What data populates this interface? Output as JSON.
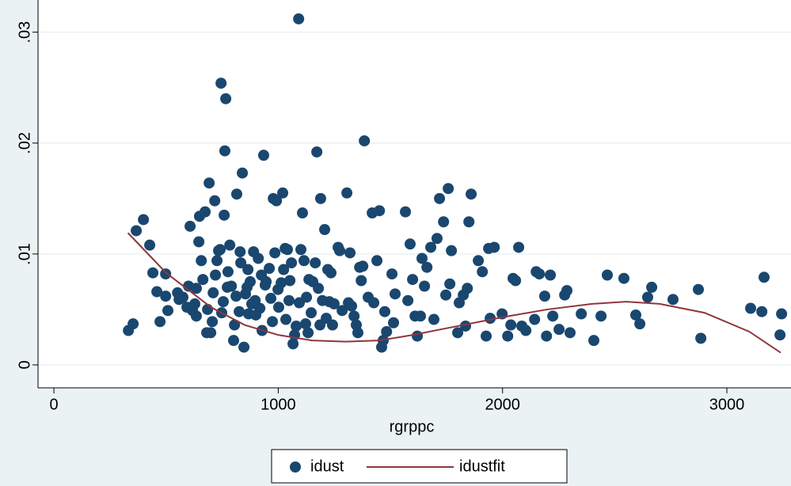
{
  "chart_data": {
    "type": "scatter",
    "x_label": "rgrppc",
    "xlim": [
      -71,
      3286
    ],
    "ylim": [
      -0.00207,
      0.0329
    ],
    "xticks": [
      0,
      1000,
      2000,
      3000
    ],
    "yticks": [
      0,
      {
        "value": 0.01,
        "label": ".01"
      },
      {
        "value": 0.02,
        "label": ".02"
      },
      {
        "value": 0.03,
        "label": ".03"
      }
    ],
    "grid": true,
    "legend": "bottom",
    "series": [
      {
        "name": "idust",
        "type": "scatter",
        "color": "#1a476f",
        "x": [
          332,
          353,
          367,
          399,
          427,
          441,
          459,
          473,
          498,
          498,
          508,
          551,
          558,
          575,
          593,
          600,
          607,
          618,
          628,
          635,
          635,
          646,
          649,
          657,
          664,
          674,
          681,
          685,
          692,
          699,
          706,
          710,
          717,
          720,
          727,
          734,
          741,
          745,
          748,
          755,
          759,
          762,
          766,
          773,
          776,
          784,
          791,
          801,
          805,
          812,
          815,
          826,
          830,
          833,
          840,
          847,
          854,
          861,
          865,
          868,
          875,
          882,
          890,
          897,
          900,
          911,
          918,
          925,
          928,
          935,
          942,
          946,
          960,
          967,
          974,
          978,
          985,
          992,
          999,
          1002,
          1013,
          1020,
          1024,
          1031,
          1034,
          1041,
          1048,
          1052,
          1059,
          1066,
          1073,
          1080,
          1091,
          1094,
          1101,
          1108,
          1115,
          1122,
          1126,
          1133,
          1137,
          1147,
          1154,
          1165,
          1172,
          1179,
          1186,
          1189,
          1197,
          1207,
          1214,
          1221,
          1228,
          1235,
          1242,
          1249,
          1267,
          1274,
          1285,
          1306,
          1313,
          1320,
          1327,
          1338,
          1348,
          1355,
          1363,
          1370,
          1377,
          1384,
          1401,
          1419,
          1426,
          1440,
          1451,
          1461,
          1468,
          1475,
          1483,
          1507,
          1514,
          1521,
          1567,
          1578,
          1588,
          1599,
          1610,
          1620,
          1634,
          1641,
          1652,
          1663,
          1680,
          1694,
          1708,
          1719,
          1737,
          1747,
          1758,
          1765,
          1772,
          1800,
          1807,
          1825,
          1835,
          1843,
          1850,
          1860,
          1892,
          1910,
          1927,
          1938,
          1945,
          1963,
          1998,
          2023,
          2037,
          2047,
          2058,
          2072,
          2086,
          2104,
          2143,
          2150,
          2164,
          2188,
          2196,
          2213,
          2224,
          2252,
          2277,
          2287,
          2301,
          2351,
          2407,
          2439,
          2467,
          2541,
          2594,
          2612,
          2647,
          2665,
          2760,
          2873,
          2884,
          3106,
          3156,
          3166,
          3237,
          3244
        ],
        "values": [
          0.0031,
          0.0037,
          0.0121,
          0.0131,
          0.0108,
          0.0083,
          0.0066,
          0.0039,
          0.0082,
          0.0062,
          0.0049,
          0.0065,
          0.0059,
          0.0061,
          0.0052,
          0.0071,
          0.0125,
          0.0049,
          0.0055,
          0.0044,
          0.0069,
          0.0111,
          0.0134,
          0.0094,
          0.0077,
          0.0138,
          0.0029,
          0.005,
          0.0164,
          0.0029,
          0.0039,
          0.0065,
          0.0148,
          0.0081,
          0.0094,
          0.0103,
          0.0104,
          0.0254,
          0.0047,
          0.0057,
          0.0135,
          0.0193,
          0.024,
          0.007,
          0.0084,
          0.0108,
          0.0071,
          0.0022,
          0.0036,
          0.0062,
          0.0154,
          0.0048,
          0.0102,
          0.0092,
          0.0173,
          0.0016,
          0.0064,
          0.007,
          0.0086,
          0.0046,
          0.0075,
          0.0055,
          0.0102,
          0.0058,
          0.0045,
          0.0096,
          0.0051,
          0.0081,
          0.0031,
          0.0189,
          0.0072,
          0.0075,
          0.0087,
          0.006,
          0.0039,
          0.015,
          0.0101,
          0.0148,
          0.0068,
          0.0052,
          0.0074,
          0.0155,
          0.0086,
          0.0105,
          0.0041,
          0.0104,
          0.0058,
          0.0076,
          0.0092,
          0.0019,
          0.0027,
          0.0035,
          0.0312,
          0.0056,
          0.0104,
          0.0137,
          0.0094,
          0.0037,
          0.0061,
          0.0029,
          0.0077,
          0.0047,
          0.0075,
          0.0092,
          0.0192,
          0.0069,
          0.0036,
          0.015,
          0.0058,
          0.0122,
          0.0042,
          0.0086,
          0.0057,
          0.0083,
          0.0036,
          0.0055,
          0.0106,
          0.0103,
          0.0049,
          0.0155,
          0.0056,
          0.0101,
          0.0053,
          0.0044,
          0.0036,
          0.0029,
          0.0088,
          0.0076,
          0.0089,
          0.0202,
          0.0061,
          0.0137,
          0.0056,
          0.0094,
          0.0139,
          0.0016,
          0.0022,
          0.0048,
          0.003,
          0.0082,
          0.0038,
          0.0064,
          0.0138,
          0.0058,
          0.0109,
          0.0077,
          0.0044,
          0.0026,
          0.0044,
          0.0096,
          0.0071,
          0.0088,
          0.0106,
          0.0041,
          0.0114,
          0.015,
          0.0129,
          0.0063,
          0.0159,
          0.0073,
          0.0103,
          0.0029,
          0.0056,
          0.0063,
          0.0035,
          0.0069,
          0.0129,
          0.0154,
          0.0094,
          0.0084,
          0.0026,
          0.0105,
          0.0042,
          0.0106,
          0.0046,
          0.0026,
          0.0036,
          0.0078,
          0.0076,
          0.0106,
          0.0035,
          0.0031,
          0.0041,
          0.0084,
          0.0082,
          0.0062,
          0.0026,
          0.0081,
          0.0044,
          0.0032,
          0.0063,
          0.0067,
          0.0029,
          0.0046,
          0.0022,
          0.0044,
          0.0081,
          0.0078,
          0.0045,
          0.0037,
          0.0061,
          0.007,
          0.0059,
          0.0068,
          0.0024,
          0.0051,
          0.0048,
          0.0079,
          0.0027,
          0.0046
        ]
      },
      {
        "name": "idustfit",
        "type": "line",
        "color": "#90353b",
        "x": [
          330,
          500,
          700,
          850,
          1000,
          1150,
          1300,
          1450,
          1600,
          1800,
          2000,
          2200,
          2400,
          2550,
          2700,
          2900,
          3100,
          3240
        ],
        "values": [
          0.0119,
          0.0083,
          0.0052,
          0.0036,
          0.0027,
          0.0022,
          0.0021,
          0.0022,
          0.0027,
          0.0035,
          0.0043,
          0.005,
          0.0055,
          0.0057,
          0.0055,
          0.0047,
          0.003,
          0.0011
        ]
      }
    ]
  }
}
